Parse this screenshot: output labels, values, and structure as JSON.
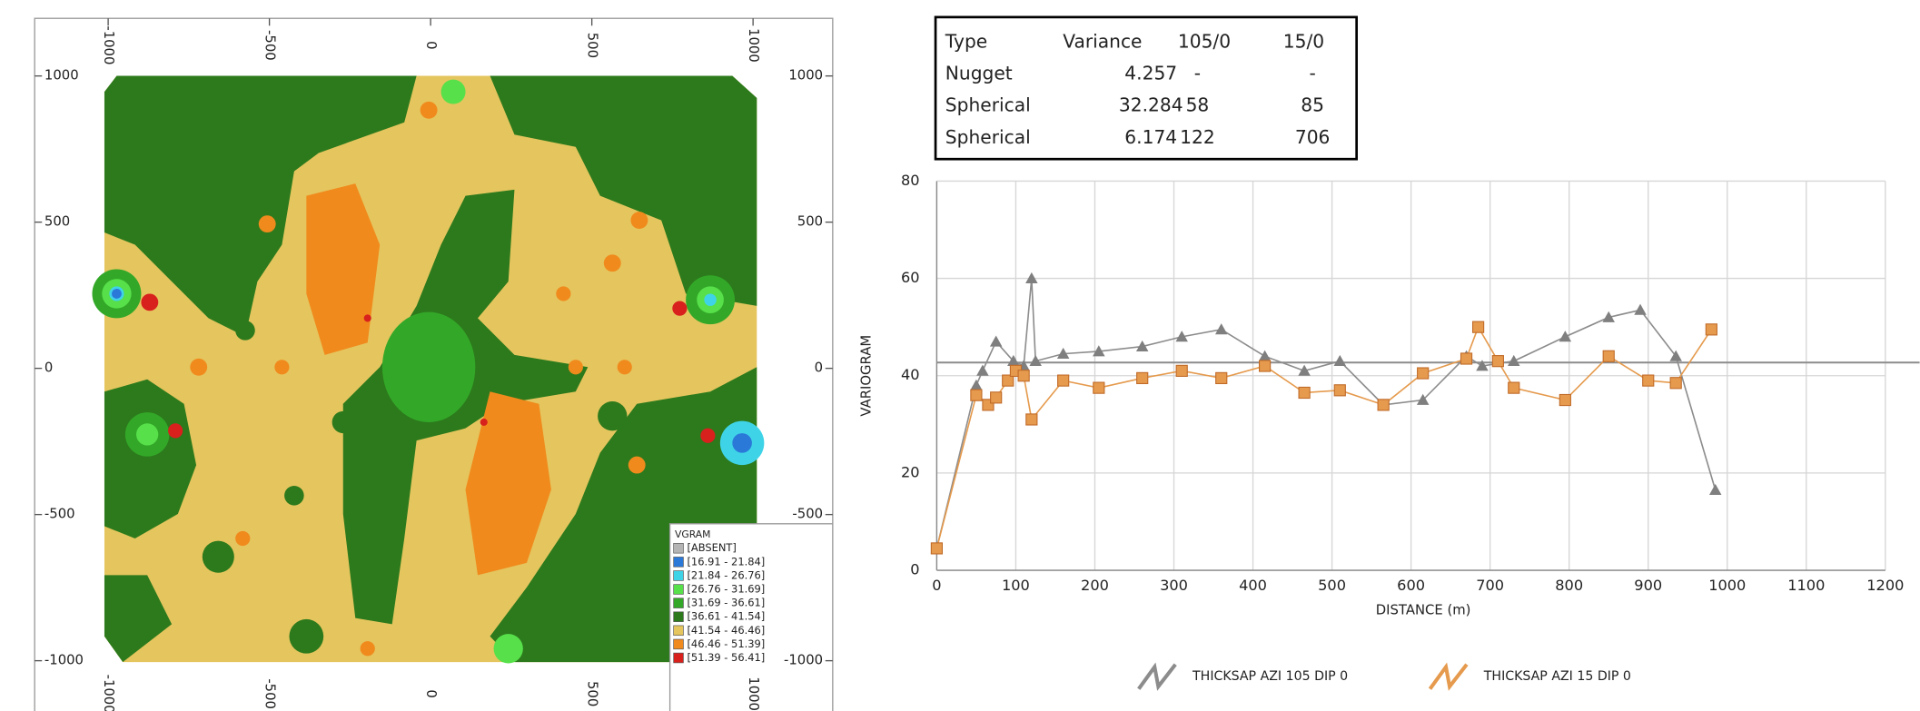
{
  "chart_data": [
    {
      "type": "contour-map",
      "legend_title": "VGRAM",
      "xlim": [
        -1228,
        1247
      ],
      "ylim": [
        -1172,
        1197
      ],
      "xticks": [
        -1000,
        -500,
        0,
        500,
        1000
      ],
      "yticks": [
        1000,
        500,
        0,
        -500,
        -1000
      ],
      "legend": [
        {
          "label": "[ABSENT]",
          "color": "#b4b4b4"
        },
        {
          "label": "[16.91 - 21.84]",
          "color": "#2a78d8"
        },
        {
          "label": "[21.84 - 26.76]",
          "color": "#3fd3e8"
        },
        {
          "label": "[26.76 - 31.69]",
          "color": "#57e04a"
        },
        {
          "label": "[31.69 - 36.61]",
          "color": "#33a828"
        },
        {
          "label": "[36.61 - 41.54]",
          "color": "#2c7a1c"
        },
        {
          "label": "[41.54 - 46.46]",
          "color": "#e5c55e"
        },
        {
          "label": "[46.46 - 51.39]",
          "color": "#f08a1c"
        },
        {
          "label": "[51.39 - 56.41]",
          "color": "#d8201c"
        }
      ]
    },
    {
      "type": "line",
      "x_label": "DISTANCE (m)",
      "y_label": "VARIOGRAM",
      "xlim": [
        0,
        1200
      ],
      "ylim": [
        0,
        80
      ],
      "xticks": [
        0,
        100,
        200,
        300,
        400,
        500,
        600,
        700,
        800,
        900,
        1000,
        1100,
        1200
      ],
      "yticks": [
        0,
        20,
        40,
        60,
        80
      ],
      "grid": true,
      "hline": 42.7,
      "hline_color": "#8c8c8c",
      "series": [
        {
          "name": "THICKSAP AZI 105 DIP 0",
          "color": "#8c8c8c",
          "marker": "triangle",
          "x": [
            0,
            50,
            58,
            75,
            97,
            110,
            120,
            125,
            160,
            205,
            260,
            310,
            360,
            415,
            465,
            510,
            565,
            615,
            670,
            690,
            730,
            795,
            850,
            890,
            935,
            985
          ],
          "values": [
            4.5,
            38,
            41,
            47,
            43,
            42,
            60,
            43,
            44.5,
            45,
            46,
            48,
            49.5,
            44,
            41,
            43,
            34,
            35,
            44,
            42,
            43,
            48,
            52,
            53.5,
            44,
            16.5
          ]
        },
        {
          "name": "THICKSAP AZI 15 DIP 0",
          "color": "#e59a4d",
          "marker": "square",
          "x": [
            0,
            50,
            65,
            75,
            90,
            100,
            110,
            120,
            160,
            205,
            260,
            310,
            360,
            415,
            465,
            510,
            565,
            615,
            670,
            685,
            710,
            730,
            795,
            850,
            900,
            935,
            980
          ],
          "values": [
            4.5,
            36,
            34,
            35.5,
            39,
            41,
            40,
            31,
            39,
            37.5,
            39.5,
            41,
            39.5,
            42,
            36.5,
            37,
            34,
            40.5,
            43.5,
            50,
            43,
            37.5,
            35,
            44,
            39,
            38.5,
            49.5
          ]
        }
      ]
    }
  ],
  "table": {
    "header": [
      "Type",
      "Variance",
      "105/0",
      "15/0"
    ],
    "rows": [
      [
        "Nugget",
        4.257,
        "-",
        "-"
      ],
      [
        "Spherical",
        32.284,
        58,
        85
      ],
      [
        "Spherical",
        6.174,
        122,
        706
      ]
    ]
  }
}
